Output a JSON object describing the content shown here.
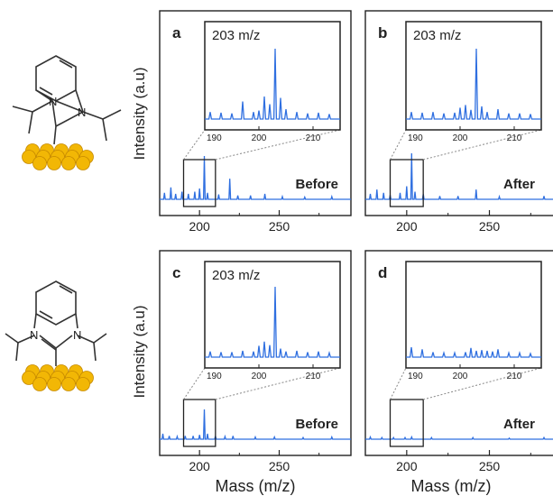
{
  "figure": {
    "ylabel": "Intensity (a.u)",
    "xlabel": "Mass (m/z)",
    "series_color": "#2f6fe0",
    "molecule_colors": {
      "gold": "#f2b705",
      "gold_edge": "#c68a00",
      "bond": "#333333"
    }
  },
  "molecules": [
    {
      "substituent_on": "C2",
      "label_N": "N",
      "label_N2": "N"
    },
    {
      "substituent_on": "N",
      "label_N": "N",
      "label_N2": "N"
    }
  ],
  "chart_data": [
    {
      "type": "line",
      "panel": "a",
      "state": "Before",
      "xlim": [
        175,
        295
      ],
      "xticks": [
        200,
        250
      ],
      "tick_labels": [
        "200",
        "250"
      ],
      "inset": {
        "label": "203 m/z",
        "xlim": [
          190,
          215
        ],
        "xticks": [
          190,
          200,
          210
        ],
        "tick_labels": [
          "190",
          "200",
          "210"
        ],
        "peaks": [
          [
            191,
            0.1
          ],
          [
            193,
            0.09
          ],
          [
            195,
            0.08
          ],
          [
            197,
            0.25
          ],
          [
            199,
            0.1
          ],
          [
            200,
            0.12
          ],
          [
            201,
            0.32
          ],
          [
            202,
            0.21
          ],
          [
            203,
            1.0
          ],
          [
            204,
            0.3
          ],
          [
            205,
            0.14
          ],
          [
            207,
            0.1
          ],
          [
            209,
            0.08
          ],
          [
            211,
            0.09
          ],
          [
            213,
            0.07
          ]
        ]
      },
      "peaks": [
        [
          178,
          0.12
        ],
        [
          182,
          0.22
        ],
        [
          185,
          0.1
        ],
        [
          189,
          0.14
        ],
        [
          193,
          0.1
        ],
        [
          197,
          0.14
        ],
        [
          200,
          0.2
        ],
        [
          203,
          0.8
        ],
        [
          205,
          0.12
        ],
        [
          212,
          0.09
        ],
        [
          219,
          0.38
        ],
        [
          224,
          0.07
        ],
        [
          232,
          0.07
        ],
        [
          241,
          0.1
        ],
        [
          252,
          0.05
        ],
        [
          266,
          0.04
        ],
        [
          283,
          0.05
        ]
      ]
    },
    {
      "type": "line",
      "panel": "b",
      "state": "After",
      "xlim": [
        175,
        295
      ],
      "xticks": [
        200,
        250
      ],
      "tick_labels": [
        "200",
        "250"
      ],
      "inset": {
        "label": "203 m/z",
        "xlim": [
          190,
          215
        ],
        "xticks": [
          190,
          200,
          210
        ],
        "tick_labels": [
          "190",
          "200",
          "210"
        ],
        "peaks": [
          [
            191,
            0.1
          ],
          [
            193,
            0.09
          ],
          [
            195,
            0.1
          ],
          [
            197,
            0.08
          ],
          [
            199,
            0.09
          ],
          [
            200,
            0.16
          ],
          [
            201,
            0.2
          ],
          [
            202,
            0.13
          ],
          [
            203,
            1.0
          ],
          [
            204,
            0.18
          ],
          [
            205,
            0.1
          ],
          [
            207,
            0.14
          ],
          [
            209,
            0.08
          ],
          [
            211,
            0.08
          ],
          [
            213,
            0.07
          ]
        ]
      },
      "peaks": [
        [
          178,
          0.1
        ],
        [
          182,
          0.18
        ],
        [
          186,
          0.12
        ],
        [
          190,
          0.08
        ],
        [
          196,
          0.12
        ],
        [
          200,
          0.24
        ],
        [
          203,
          0.85
        ],
        [
          205,
          0.14
        ],
        [
          210,
          0.1
        ],
        [
          220,
          0.06
        ],
        [
          231,
          0.06
        ],
        [
          242,
          0.18
        ],
        [
          256,
          0.05
        ],
        [
          283,
          0.06
        ]
      ]
    },
    {
      "type": "line",
      "panel": "c",
      "state": "Before",
      "xlim": [
        175,
        295
      ],
      "xticks": [
        200,
        250
      ],
      "tick_labels": [
        "200",
        "250"
      ],
      "inset": {
        "label": "203 m/z",
        "xlim": [
          190,
          215
        ],
        "xticks": [
          190,
          200,
          210
        ],
        "tick_labels": [
          "190",
          "200",
          "210"
        ],
        "peaks": [
          [
            191,
            0.08
          ],
          [
            193,
            0.07
          ],
          [
            195,
            0.07
          ],
          [
            197,
            0.09
          ],
          [
            199,
            0.08
          ],
          [
            200,
            0.16
          ],
          [
            201,
            0.22
          ],
          [
            202,
            0.17
          ],
          [
            203,
            1.0
          ],
          [
            204,
            0.12
          ],
          [
            205,
            0.08
          ],
          [
            207,
            0.09
          ],
          [
            209,
            0.07
          ],
          [
            211,
            0.08
          ],
          [
            213,
            0.06
          ]
        ]
      },
      "peaks": [
        [
          177,
          0.1
        ],
        [
          181,
          0.06
        ],
        [
          186,
          0.05
        ],
        [
          191,
          0.06
        ],
        [
          196,
          0.06
        ],
        [
          200,
          0.08
        ],
        [
          203,
          0.55
        ],
        [
          205,
          0.1
        ],
        [
          210,
          0.06
        ],
        [
          216,
          0.05
        ],
        [
          221,
          0.06
        ],
        [
          235,
          0.04
        ],
        [
          247,
          0.04
        ],
        [
          265,
          0.03
        ],
        [
          283,
          0.04
        ]
      ]
    },
    {
      "type": "line",
      "panel": "d",
      "state": "After",
      "xlim": [
        175,
        295
      ],
      "xticks": [
        200,
        250
      ],
      "tick_labels": [
        "200",
        "250"
      ],
      "inset": {
        "label": "",
        "xlim": [
          190,
          215
        ],
        "xticks": [
          190,
          200,
          210
        ],
        "tick_labels": [
          "190",
          "200",
          "210"
        ],
        "peaks": [
          [
            191,
            0.14
          ],
          [
            193,
            0.11
          ],
          [
            195,
            0.07
          ],
          [
            197,
            0.06
          ],
          [
            199,
            0.06
          ],
          [
            201,
            0.07
          ],
          [
            202,
            0.13
          ],
          [
            203,
            0.09
          ],
          [
            204,
            0.1
          ],
          [
            205,
            0.09
          ],
          [
            206,
            0.08
          ],
          [
            207,
            0.11
          ],
          [
            209,
            0.06
          ],
          [
            211,
            0.06
          ],
          [
            213,
            0.05
          ]
        ]
      },
      "peaks": [
        [
          178,
          0.04
        ],
        [
          185,
          0.03
        ],
        [
          192,
          0.03
        ],
        [
          199,
          0.03
        ],
        [
          203,
          0.04
        ],
        [
          215,
          0.03
        ],
        [
          240,
          0.03
        ],
        [
          262,
          0.02
        ],
        [
          283,
          0.03
        ]
      ]
    }
  ]
}
